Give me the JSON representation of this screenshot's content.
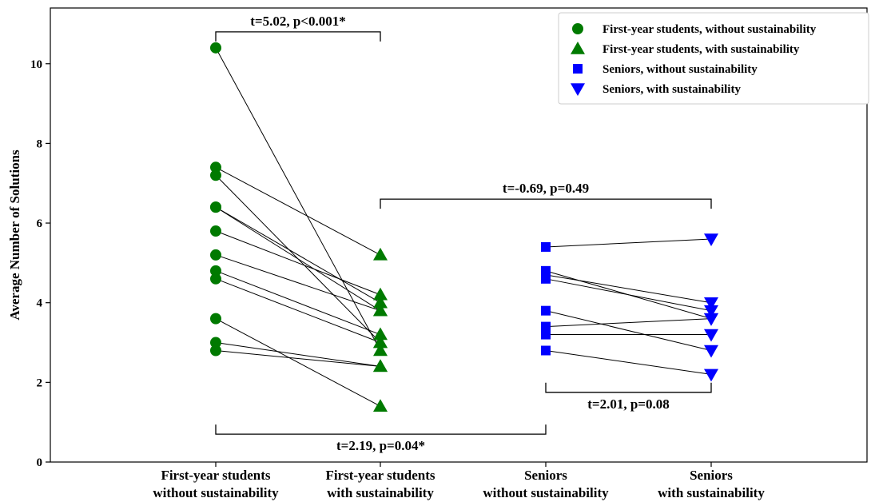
{
  "chart_data": {
    "type": "scatter",
    "ylabel": "Average Number of Solutions",
    "ylim": [
      0,
      11.4
    ],
    "yticks": [
      "0",
      "2",
      "4",
      "6",
      "8",
      "10"
    ],
    "categories": [
      [
        "First-year students",
        "without sustainability"
      ],
      [
        "First-year students",
        "with sustainability"
      ],
      [
        "Seniors",
        "without sustainability"
      ],
      [
        "Seniors",
        "with sustainability"
      ]
    ],
    "colors": {
      "green": "#007a00",
      "blue": "#0000ff"
    },
    "legend": {
      "position": "top-right",
      "entries": [
        {
          "label": "First-year students, without sustainability",
          "marker": "circle",
          "color": "#007a00"
        },
        {
          "label": "First-year students, with sustainability",
          "marker": "triangle-up",
          "color": "#007a00"
        },
        {
          "label": "Seniors, without sustainability",
          "marker": "square",
          "color": "#0000ff"
        },
        {
          "label": "Seniors, with sustainability",
          "marker": "triangle-down",
          "color": "#0000ff"
        }
      ]
    },
    "series": [
      {
        "name": "First-year students, without sustainability",
        "category_index": 0,
        "marker": "circle",
        "color": "#007a00",
        "values": [
          10.4,
          7.4,
          7.2,
          6.4,
          6.4,
          5.8,
          5.2,
          4.8,
          4.6,
          3.6,
          3.0,
          2.8
        ]
      },
      {
        "name": "First-year students, with sustainability",
        "category_index": 1,
        "marker": "triangle-up",
        "color": "#007a00",
        "values": [
          2.8,
          5.2,
          3.0,
          4.0,
          3.8,
          4.2,
          3.8,
          3.2,
          3.0,
          1.4,
          2.4,
          2.4
        ]
      },
      {
        "name": "Seniors, without sustainability",
        "category_index": 2,
        "marker": "square",
        "color": "#0000ff",
        "values": [
          5.4,
          4.8,
          4.7,
          4.6,
          3.8,
          3.4,
          3.2,
          2.8
        ]
      },
      {
        "name": "Seniors, with sustainability",
        "category_index": 3,
        "marker": "triangle-down",
        "color": "#0000ff",
        "values": [
          5.6,
          3.6,
          4.0,
          3.8,
          2.8,
          3.6,
          3.2,
          2.2
        ]
      }
    ],
    "pairs": [
      {
        "from_series": 0,
        "to_series": 1
      },
      {
        "from_series": 2,
        "to_series": 3
      }
    ],
    "annotations": [
      {
        "text": "t=5.02, p<0.001*",
        "from_category": 0,
        "to_category": 1,
        "y": 10.8,
        "direction": "down",
        "label": "above"
      },
      {
        "text": "t=-0.69, p=0.49",
        "from_category": 1,
        "to_category": 3,
        "y": 6.6,
        "direction": "down",
        "label": "above"
      },
      {
        "text": "t=2.01, p=0.08",
        "from_category": 2,
        "to_category": 3,
        "y": 1.75,
        "direction": "up",
        "label": "below"
      },
      {
        "text": "t=2.19, p=0.04*",
        "from_category": 0,
        "to_category": 2,
        "y": 0.7,
        "direction": "up",
        "label": "below"
      }
    ]
  }
}
